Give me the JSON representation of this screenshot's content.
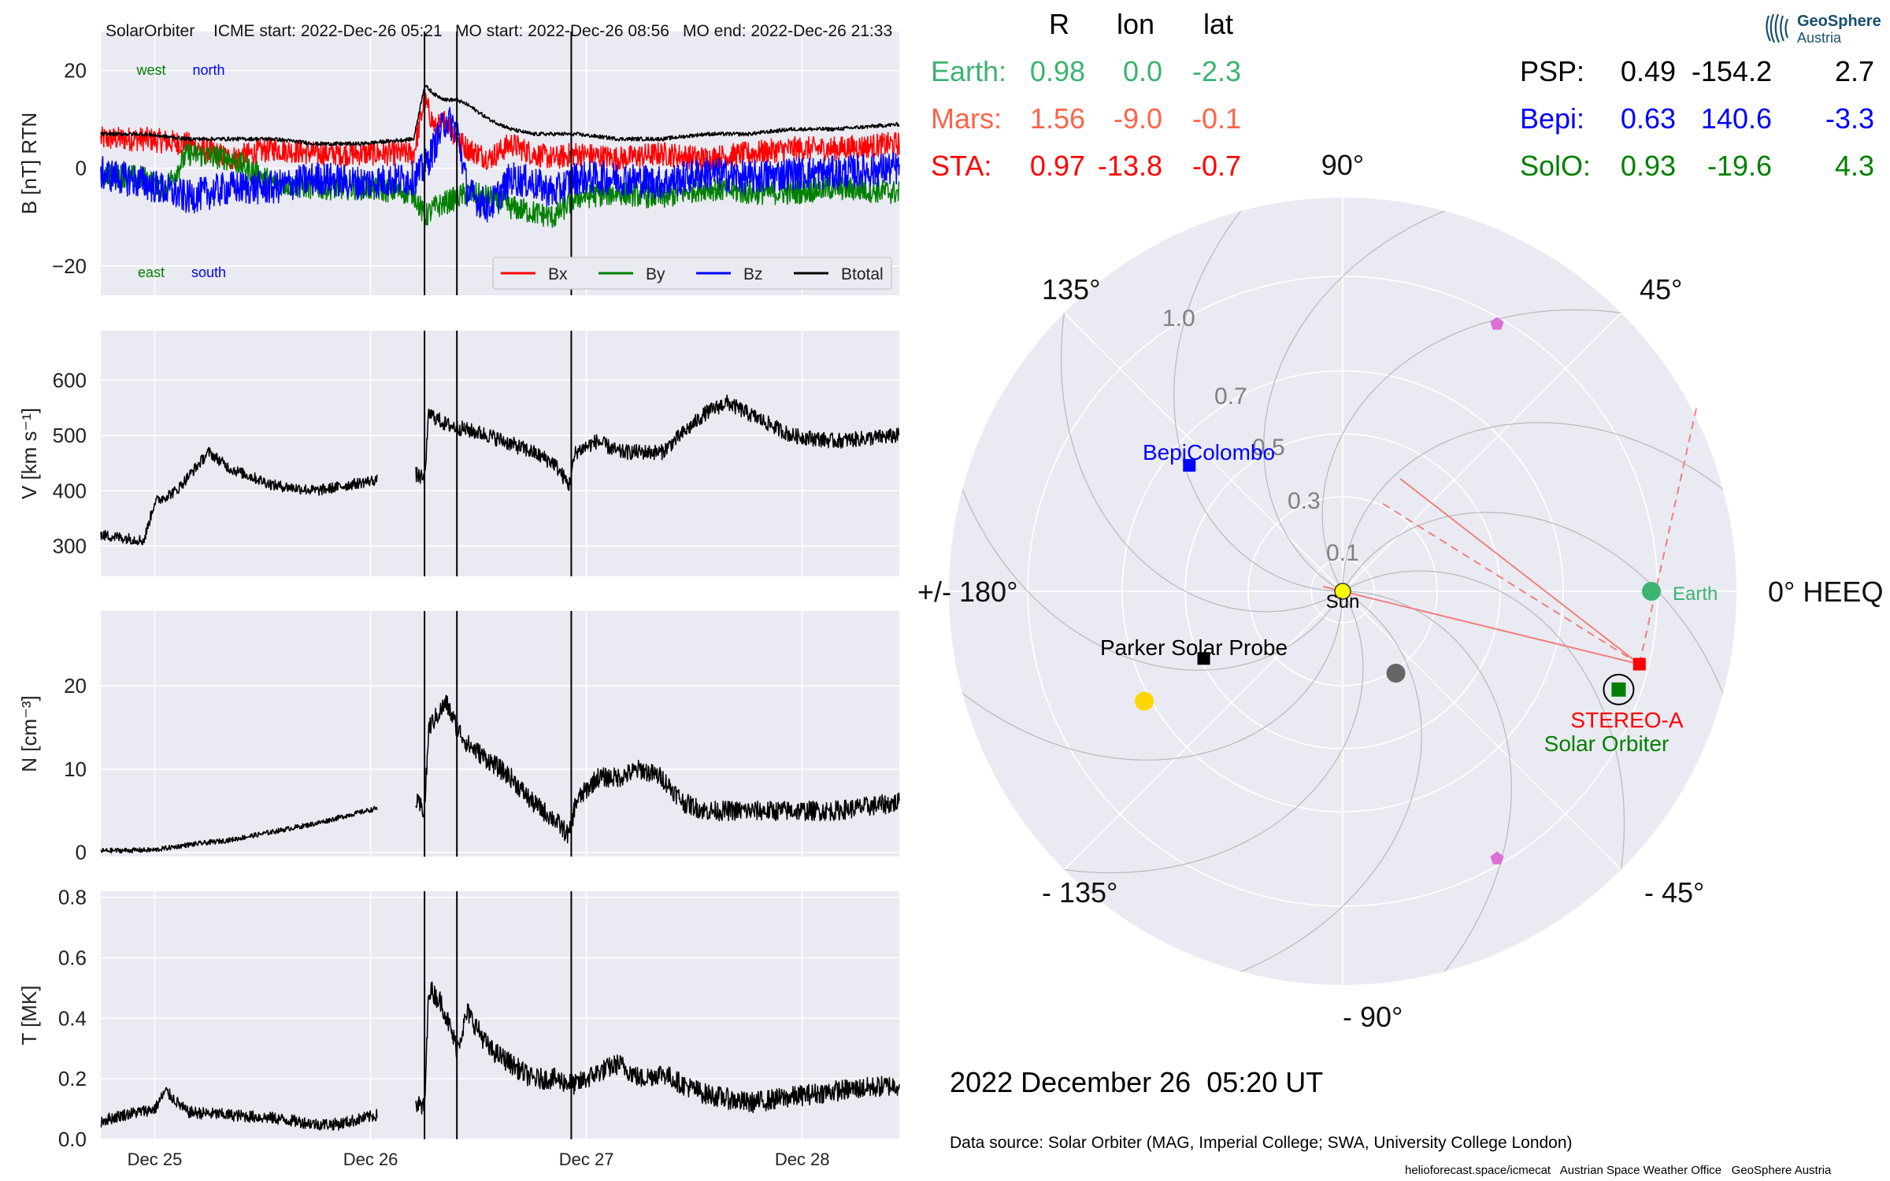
{
  "header": {
    "spacecraft": "SolarOrbiter",
    "icme_start": "ICME start: 2022-Dec-26 05:21",
    "mo_start": "MO start: 2022-Dec-26 08:56",
    "mo_end": "MO end: 2022-Dec-26 21:33"
  },
  "table": {
    "col_r": "R",
    "col_lon": "lon",
    "col_lat": "lat",
    "left_rows": [
      {
        "name": "Earth:",
        "r": "0.98",
        "lon": "0.0",
        "lat": "-2.3",
        "color": "#3cb371"
      },
      {
        "name": "Mars:",
        "r": "1.56",
        "lon": "-9.0",
        "lat": "-0.1",
        "color": "#ff6347"
      },
      {
        "name": "STA:",
        "r": "0.97",
        "lon": "-13.8",
        "lat": "-0.7",
        "color": "#ff0000"
      }
    ],
    "right_rows": [
      {
        "name": "PSP:",
        "r": "0.49",
        "lon": "-154.2",
        "lat": "2.7",
        "color": "#000000"
      },
      {
        "name": "Bepi:",
        "r": "0.63",
        "lon": "140.6",
        "lat": "-3.3",
        "color": "#0000ff"
      },
      {
        "name": "SolO:",
        "r": "0.93",
        "lon": "-19.6",
        "lat": "4.3",
        "color": "#008000"
      }
    ]
  },
  "logo": {
    "line1": "GeoSphere",
    "line2": "Austria"
  },
  "date_text": "2022 December 26  05:20 UT",
  "data_source": "Data source: Solar Orbiter (MAG, Imperial College; SWA, University College London)",
  "footer": "helioforecast.space/icmecat   Austrian Space Weather Office   GeoSphere Austria",
  "colors": {
    "bg_panel": "#eaeaf2",
    "grid": "#ffffff",
    "bx": "#ff0000",
    "by": "#008000",
    "bz": "#0000ff",
    "btotal": "#000000"
  },
  "chart_data": [
    {
      "type": "line",
      "ylabel": "B [nT] RTN",
      "ylim": [
        -26,
        28
      ],
      "yticks": [
        {
          "v": 20,
          "label": "20"
        },
        {
          "v": 0,
          "label": "0"
        },
        {
          "v": -20,
          "label": "−20"
        }
      ],
      "xlim": [
        0,
        3.7
      ],
      "xticks": [
        {
          "v": 0.25,
          "label": "Dec 25"
        },
        {
          "v": 1.25,
          "label": "Dec 26"
        },
        {
          "v": 2.25,
          "label": "Dec 27"
        },
        {
          "v": 3.25,
          "label": "Dec 28"
        }
      ],
      "vlines": [
        1.5,
        1.65,
        2.18
      ],
      "corner_labels": {
        "west": "west",
        "north": "north",
        "east": "east",
        "south": "south"
      },
      "legend": "bottom-right",
      "series": [
        {
          "name": "Bx",
          "color": "#ff0000",
          "x": [
            0,
            0.2,
            0.4,
            0.6,
            0.8,
            1.0,
            1.2,
            1.45,
            1.5,
            1.55,
            1.6,
            1.65,
            1.7,
            1.8,
            1.9,
            2.0,
            2.1,
            2.2,
            2.4,
            2.6,
            2.8,
            3.0,
            3.2,
            3.4,
            3.7
          ],
          "y": [
            6,
            6,
            5,
            2,
            4,
            3,
            3,
            3,
            14,
            8,
            10,
            6,
            4,
            2,
            5,
            3,
            2,
            3,
            2,
            3,
            2,
            3,
            4,
            4,
            5
          ],
          "noise": 2.5
        },
        {
          "name": "By",
          "color": "#008000",
          "x": [
            0,
            0.2,
            0.3,
            0.4,
            0.6,
            0.8,
            1.0,
            1.2,
            1.45,
            1.5,
            1.55,
            1.6,
            1.65,
            1.7,
            1.8,
            1.9,
            2.0,
            2.1,
            2.2,
            2.4,
            2.6,
            2.8,
            3.0,
            3.2,
            3.4,
            3.7
          ],
          "y": [
            -1,
            -2,
            -4,
            3,
            2,
            -3,
            -4,
            -4,
            -5,
            -10,
            -8,
            -7,
            -6,
            -5,
            -6,
            -8,
            -9,
            -10,
            -6,
            -5,
            -6,
            -4,
            -5,
            -5,
            -4,
            -5
          ],
          "noise": 2.5
        },
        {
          "name": "Bz",
          "color": "#0000ff",
          "x": [
            0,
            0.2,
            0.4,
            0.6,
            0.8,
            1.0,
            1.2,
            1.45,
            1.5,
            1.55,
            1.6,
            1.65,
            1.7,
            1.8,
            1.9,
            2.0,
            2.1,
            2.2,
            2.4,
            2.6,
            2.8,
            3.0,
            3.2,
            3.4,
            3.7
          ],
          "y": [
            -1,
            -3,
            -6,
            -4,
            -4,
            -2,
            -3,
            -2,
            0,
            5,
            10,
            8,
            -5,
            -8,
            -2,
            -3,
            -5,
            -2,
            -2,
            -3,
            -1,
            -2,
            -1,
            -1,
            0
          ],
          "noise": 3.5
        },
        {
          "name": "Btotal",
          "color": "#000000",
          "x": [
            0,
            0.2,
            0.4,
            0.6,
            0.8,
            1.0,
            1.2,
            1.45,
            1.5,
            1.55,
            1.6,
            1.65,
            1.7,
            1.8,
            1.9,
            2.0,
            2.1,
            2.2,
            2.4,
            2.6,
            2.8,
            3.0,
            3.2,
            3.4,
            3.7
          ],
          "y": [
            7,
            7,
            6,
            6,
            6,
            5,
            5,
            6,
            17,
            15,
            14,
            14,
            13,
            10,
            8,
            7,
            7,
            7,
            6,
            6,
            7,
            7,
            8,
            8,
            9
          ],
          "noise": 0.4
        }
      ]
    },
    {
      "type": "line",
      "ylabel": "V [km s⁻¹]",
      "ylim": [
        245,
        690
      ],
      "yticks": [
        {
          "v": 600,
          "label": "600"
        },
        {
          "v": 500,
          "label": "500"
        },
        {
          "v": 400,
          "label": "400"
        },
        {
          "v": 300,
          "label": "300"
        }
      ],
      "xlim": [
        0,
        3.7
      ],
      "vlines": [
        1.5,
        1.65,
        2.18
      ],
      "series": [
        {
          "name": "V",
          "color": "#000000",
          "x": [
            0,
            0.2,
            0.25,
            0.35,
            0.5,
            0.6,
            0.8,
            1.0,
            1.28
          ],
          "y": [
            320,
            310,
            380,
            400,
            470,
            440,
            410,
            400,
            420
          ],
          "noise": 10,
          "x2": [
            1.46,
            1.5,
            1.52,
            1.6,
            1.8,
            2.0,
            2.1,
            2.17,
            2.2,
            2.3,
            2.4,
            2.6,
            2.8,
            2.9,
            3.0,
            3.2,
            3.4,
            3.7
          ],
          "y2": [
            430,
            420,
            540,
            520,
            500,
            470,
            450,
            410,
            470,
            490,
            470,
            470,
            540,
            560,
            540,
            500,
            490,
            500
          ],
          "noise2": 14
        }
      ]
    },
    {
      "type": "line",
      "ylabel": "N [cm⁻³]",
      "ylim": [
        -0.5,
        29
      ],
      "yticks": [
        {
          "v": 20,
          "label": "20"
        },
        {
          "v": 10,
          "label": "10"
        },
        {
          "v": 0,
          "label": "0"
        }
      ],
      "xlim": [
        0,
        3.7
      ],
      "vlines": [
        1.5,
        1.65,
        2.18
      ],
      "series": [
        {
          "name": "N",
          "color": "#000000",
          "x": [
            0,
            0.25,
            0.4,
            0.6,
            0.8,
            1.0,
            1.15,
            1.28
          ],
          "y": [
            0.2,
            0.3,
            0.9,
            1.5,
            2.5,
            3.5,
            4.5,
            5.3
          ],
          "noise": 0.3,
          "x2": [
            1.46,
            1.5,
            1.52,
            1.6,
            1.65,
            1.7,
            1.8,
            1.9,
            2.0,
            2.1,
            2.17,
            2.2,
            2.3,
            2.4,
            2.5,
            2.6,
            2.7,
            2.8,
            3.0,
            3.2,
            3.4,
            3.7
          ],
          "y2": [
            6,
            5,
            15,
            18,
            15,
            13,
            11,
            9,
            6,
            4,
            2,
            6,
            9,
            9,
            10,
            9,
            6,
            5,
            5,
            5,
            5,
            6
          ],
          "noise2": 1.2
        }
      ]
    },
    {
      "type": "line",
      "ylabel": "T [MK]",
      "ylim": [
        0,
        0.82
      ],
      "yticks": [
        {
          "v": 0.8,
          "label": "0.8"
        },
        {
          "v": 0.6,
          "label": "0.6"
        },
        {
          "v": 0.4,
          "label": "0.4"
        },
        {
          "v": 0.2,
          "label": "0.2"
        },
        {
          "v": 0.0,
          "label": "0.0"
        }
      ],
      "xlim": [
        0,
        3.7
      ],
      "xticks": [
        {
          "v": 0.25,
          "label": "Dec 25"
        },
        {
          "v": 1.25,
          "label": "Dec 26"
        },
        {
          "v": 2.25,
          "label": "Dec 27"
        },
        {
          "v": 3.25,
          "label": "Dec 28"
        }
      ],
      "vlines": [
        1.5,
        1.65,
        2.18
      ],
      "series": [
        {
          "name": "T",
          "color": "#000000",
          "x": [
            0,
            0.1,
            0.25,
            0.3,
            0.4,
            0.6,
            0.8,
            1.0,
            1.1,
            1.28
          ],
          "y": [
            0.06,
            0.08,
            0.1,
            0.16,
            0.09,
            0.08,
            0.07,
            0.05,
            0.05,
            0.08
          ],
          "noise": 0.02,
          "x2": [
            1.46,
            1.5,
            1.52,
            1.58,
            1.65,
            1.7,
            1.8,
            1.9,
            2.0,
            2.1,
            2.2,
            2.3,
            2.4,
            2.5,
            2.6,
            2.7,
            2.8,
            3.0,
            3.2,
            3.4,
            3.7
          ],
          "y2": [
            0.12,
            0.1,
            0.5,
            0.45,
            0.3,
            0.42,
            0.3,
            0.25,
            0.2,
            0.2,
            0.18,
            0.22,
            0.25,
            0.2,
            0.22,
            0.18,
            0.15,
            0.12,
            0.14,
            0.16,
            0.18
          ],
          "noise2": 0.035
        }
      ]
    },
    {
      "type": "scatter",
      "coordinate_system": "HEEQ polar",
      "angle_labels": [
        {
          "deg": 0,
          "label": "0° HEEQ"
        },
        {
          "deg": 45,
          "label": "45°"
        },
        {
          "deg": 90,
          "label": "90°"
        },
        {
          "deg": 135,
          "label": "135°"
        },
        {
          "deg": 180,
          "label": "+/- 180°"
        },
        {
          "deg": -135,
          "label": "- 135°"
        },
        {
          "deg": -90,
          "label": "- 90°"
        },
        {
          "deg": -45,
          "label": "- 45°"
        }
      ],
      "radial_ticks": [
        {
          "r": 0.1,
          "label": "0.1"
        },
        {
          "r": 0.3,
          "label": "0.3"
        },
        {
          "r": 0.5,
          "label": "0.5"
        },
        {
          "r": 0.7,
          "label": "0.7"
        },
        {
          "r": 1.0,
          "label": "1.0"
        }
      ],
      "rmax": 1.25,
      "objects": [
        {
          "name": "Sun",
          "label": "Sun",
          "r": 0.0,
          "lon": 0.0,
          "marker": "circle",
          "color": "#ffff00",
          "size": 10
        },
        {
          "name": "Earth",
          "label": "Earth",
          "r": 0.98,
          "lon": 0.0,
          "marker": "circle",
          "color": "#3cb371",
          "size": 12
        },
        {
          "name": "STEREO-A",
          "label": "STEREO-A",
          "r": 0.97,
          "lon": -13.8,
          "marker": "square",
          "color": "#ff0000",
          "size": 16
        },
        {
          "name": "Solar Orbiter",
          "label": "Solar Orbiter",
          "r": 0.93,
          "lon": -19.6,
          "marker": "square",
          "color": "#008000",
          "size": 18
        },
        {
          "name": "BepiColombo",
          "label": "BepiColombo",
          "r": 0.63,
          "lon": 140.6,
          "marker": "square",
          "color": "#0000ff",
          "size": 16
        },
        {
          "name": "Parker Solar Probe",
          "label": "Parker Solar Probe",
          "r": 0.49,
          "lon": -154.2,
          "marker": "square",
          "color": "#000000",
          "size": 16
        },
        {
          "name": "Mercury",
          "label": "",
          "r": 0.31,
          "lon": -57.0,
          "marker": "circle",
          "color": "#666666",
          "size": 12
        },
        {
          "name": "Venus",
          "label": "",
          "r": 0.72,
          "lon": -151.0,
          "marker": "circle",
          "color": "#ffd700",
          "size": 12
        },
        {
          "name": "L4",
          "label": "",
          "r": 0.98,
          "lon": 60.0,
          "marker": "pentagon",
          "color": "#da70d6",
          "size": 9
        },
        {
          "name": "L5",
          "label": "",
          "r": 0.98,
          "lon": -60.0,
          "marker": "pentagon",
          "color": "#da70d6",
          "size": 9
        }
      ]
    }
  ]
}
